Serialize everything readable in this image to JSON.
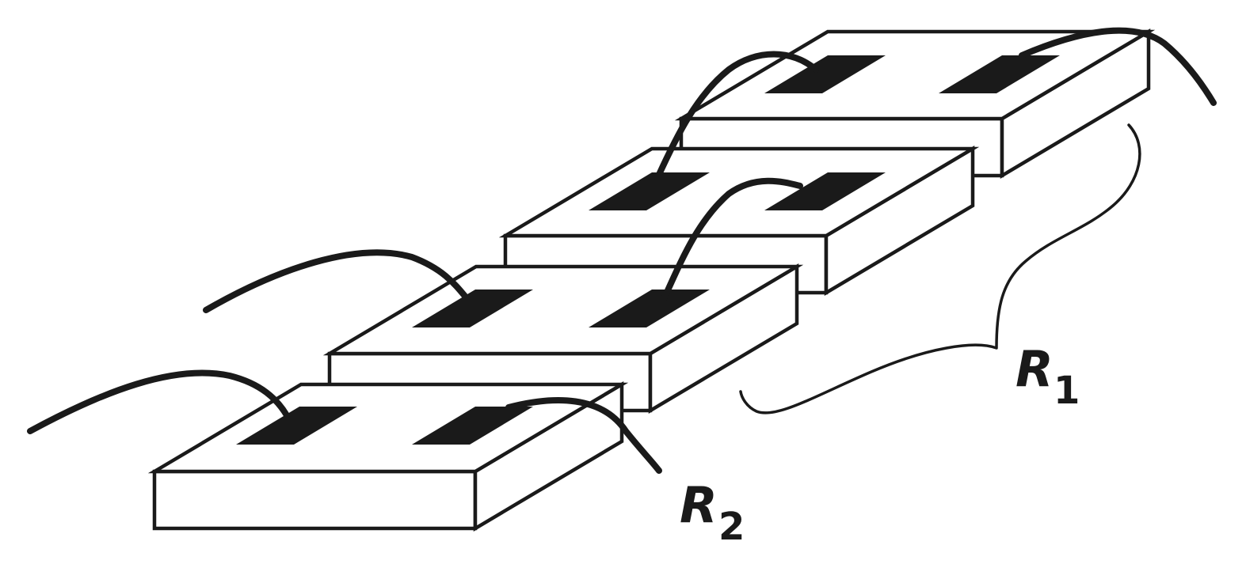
{
  "labels": {
    "r1": {
      "main": "R",
      "sub": "1"
    },
    "r2": {
      "main": "R",
      "sub": "2"
    }
  },
  "colors": {
    "ink": "#1a1a1a",
    "background": "#ffffff"
  }
}
